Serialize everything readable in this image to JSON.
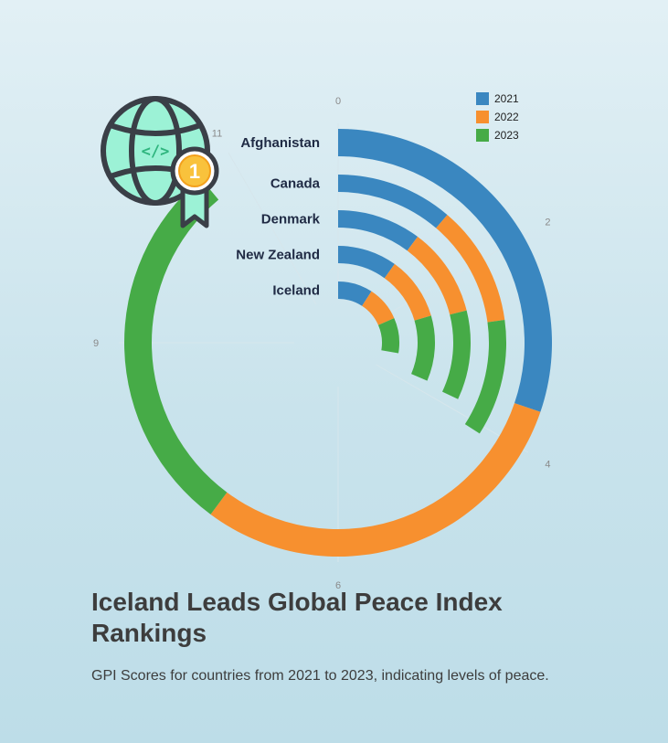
{
  "chart_data": {
    "type": "radial-stacked-bar",
    "title": "Iceland Leads Global Peace Index Rankings",
    "subtitle": "GPI Scores for countries from 2021 to 2023, indicating levels of peace.",
    "categories": [
      "Afghanistan",
      "Canada",
      "Denmark",
      "New Zealand",
      "Iceland"
    ],
    "series": [
      {
        "name": "2021",
        "color": "#3a87c0",
        "values": [
          3.63,
          1.35,
          1.23,
          1.19,
          1.1
        ]
      },
      {
        "name": "2022",
        "color": "#f7902f",
        "values": [
          3.59,
          1.39,
          1.3,
          1.27,
          1.11
        ]
      },
      {
        "name": "2023",
        "color": "#46ab47",
        "values": [
          3.45,
          1.35,
          1.31,
          1.31,
          1.12
        ]
      }
    ],
    "axis": {
      "range": [
        0,
        12
      ],
      "ticks": [
        0,
        2,
        4,
        6,
        9,
        11
      ]
    },
    "legend": "top-right"
  },
  "icon": "globe-code-award-medal-icon",
  "badge_number": "1"
}
